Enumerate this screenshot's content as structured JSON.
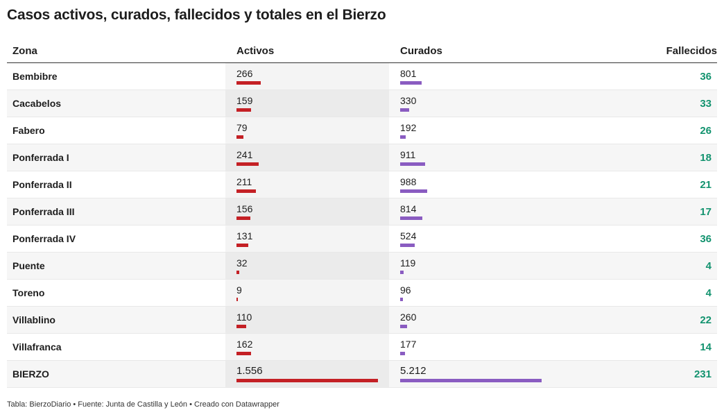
{
  "title": "Casos activos, curados, fallecidos y totales en el Bierzo",
  "headers": {
    "zona": "Zona",
    "activos": "Activos",
    "curados": "Curados",
    "fallecidos": "Fallecidos"
  },
  "colors": {
    "activos_bar": "#c42025",
    "curados_bar": "#8a5cc1",
    "fallecidos_text": "#13936f"
  },
  "chart_data": {
    "type": "table",
    "columns": [
      "Zona",
      "Activos",
      "Curados",
      "Fallecidos"
    ],
    "bar_scale_max": {
      "activos": 1556,
      "curados": 5212
    },
    "rows": [
      {
        "zona": "Bembibre",
        "activos": 266,
        "activos_label": "266",
        "curados": 801,
        "curados_label": "801",
        "fallecidos": "36"
      },
      {
        "zona": "Cacabelos",
        "activos": 159,
        "activos_label": "159",
        "curados": 330,
        "curados_label": "330",
        "fallecidos": "33"
      },
      {
        "zona": "Fabero",
        "activos": 79,
        "activos_label": "79",
        "curados": 192,
        "curados_label": "192",
        "fallecidos": "26"
      },
      {
        "zona": "Ponferrada I",
        "activos": 241,
        "activos_label": "241",
        "curados": 911,
        "curados_label": "911",
        "fallecidos": "18"
      },
      {
        "zona": "Ponferrada II",
        "activos": 211,
        "activos_label": "211",
        "curados": 988,
        "curados_label": "988",
        "fallecidos": "21"
      },
      {
        "zona": "Ponferrada III",
        "activos": 156,
        "activos_label": "156",
        "curados": 814,
        "curados_label": "814",
        "fallecidos": "17"
      },
      {
        "zona": "Ponferrada IV",
        "activos": 131,
        "activos_label": "131",
        "curados": 524,
        "curados_label": "524",
        "fallecidos": "36"
      },
      {
        "zona": "Puente",
        "activos": 32,
        "activos_label": "32",
        "curados": 119,
        "curados_label": "119",
        "fallecidos": "4"
      },
      {
        "zona": "Toreno",
        "activos": 9,
        "activos_label": "9",
        "curados": 96,
        "curados_label": "96",
        "fallecidos": "4"
      },
      {
        "zona": "Villablino",
        "activos": 110,
        "activos_label": "110",
        "curados": 260,
        "curados_label": "260",
        "fallecidos": "22"
      },
      {
        "zona": "Villafranca",
        "activos": 162,
        "activos_label": "162",
        "curados": 177,
        "curados_label": "177",
        "fallecidos": "14"
      },
      {
        "zona": "BIERZO",
        "activos": 1556,
        "activos_label": "1.556",
        "curados": 5212,
        "curados_label": "5.212",
        "fallecidos": "231"
      }
    ]
  },
  "footer": "Tabla: BierzoDiario • Fuente: Junta de Castilla y León • Creado con Datawrapper"
}
